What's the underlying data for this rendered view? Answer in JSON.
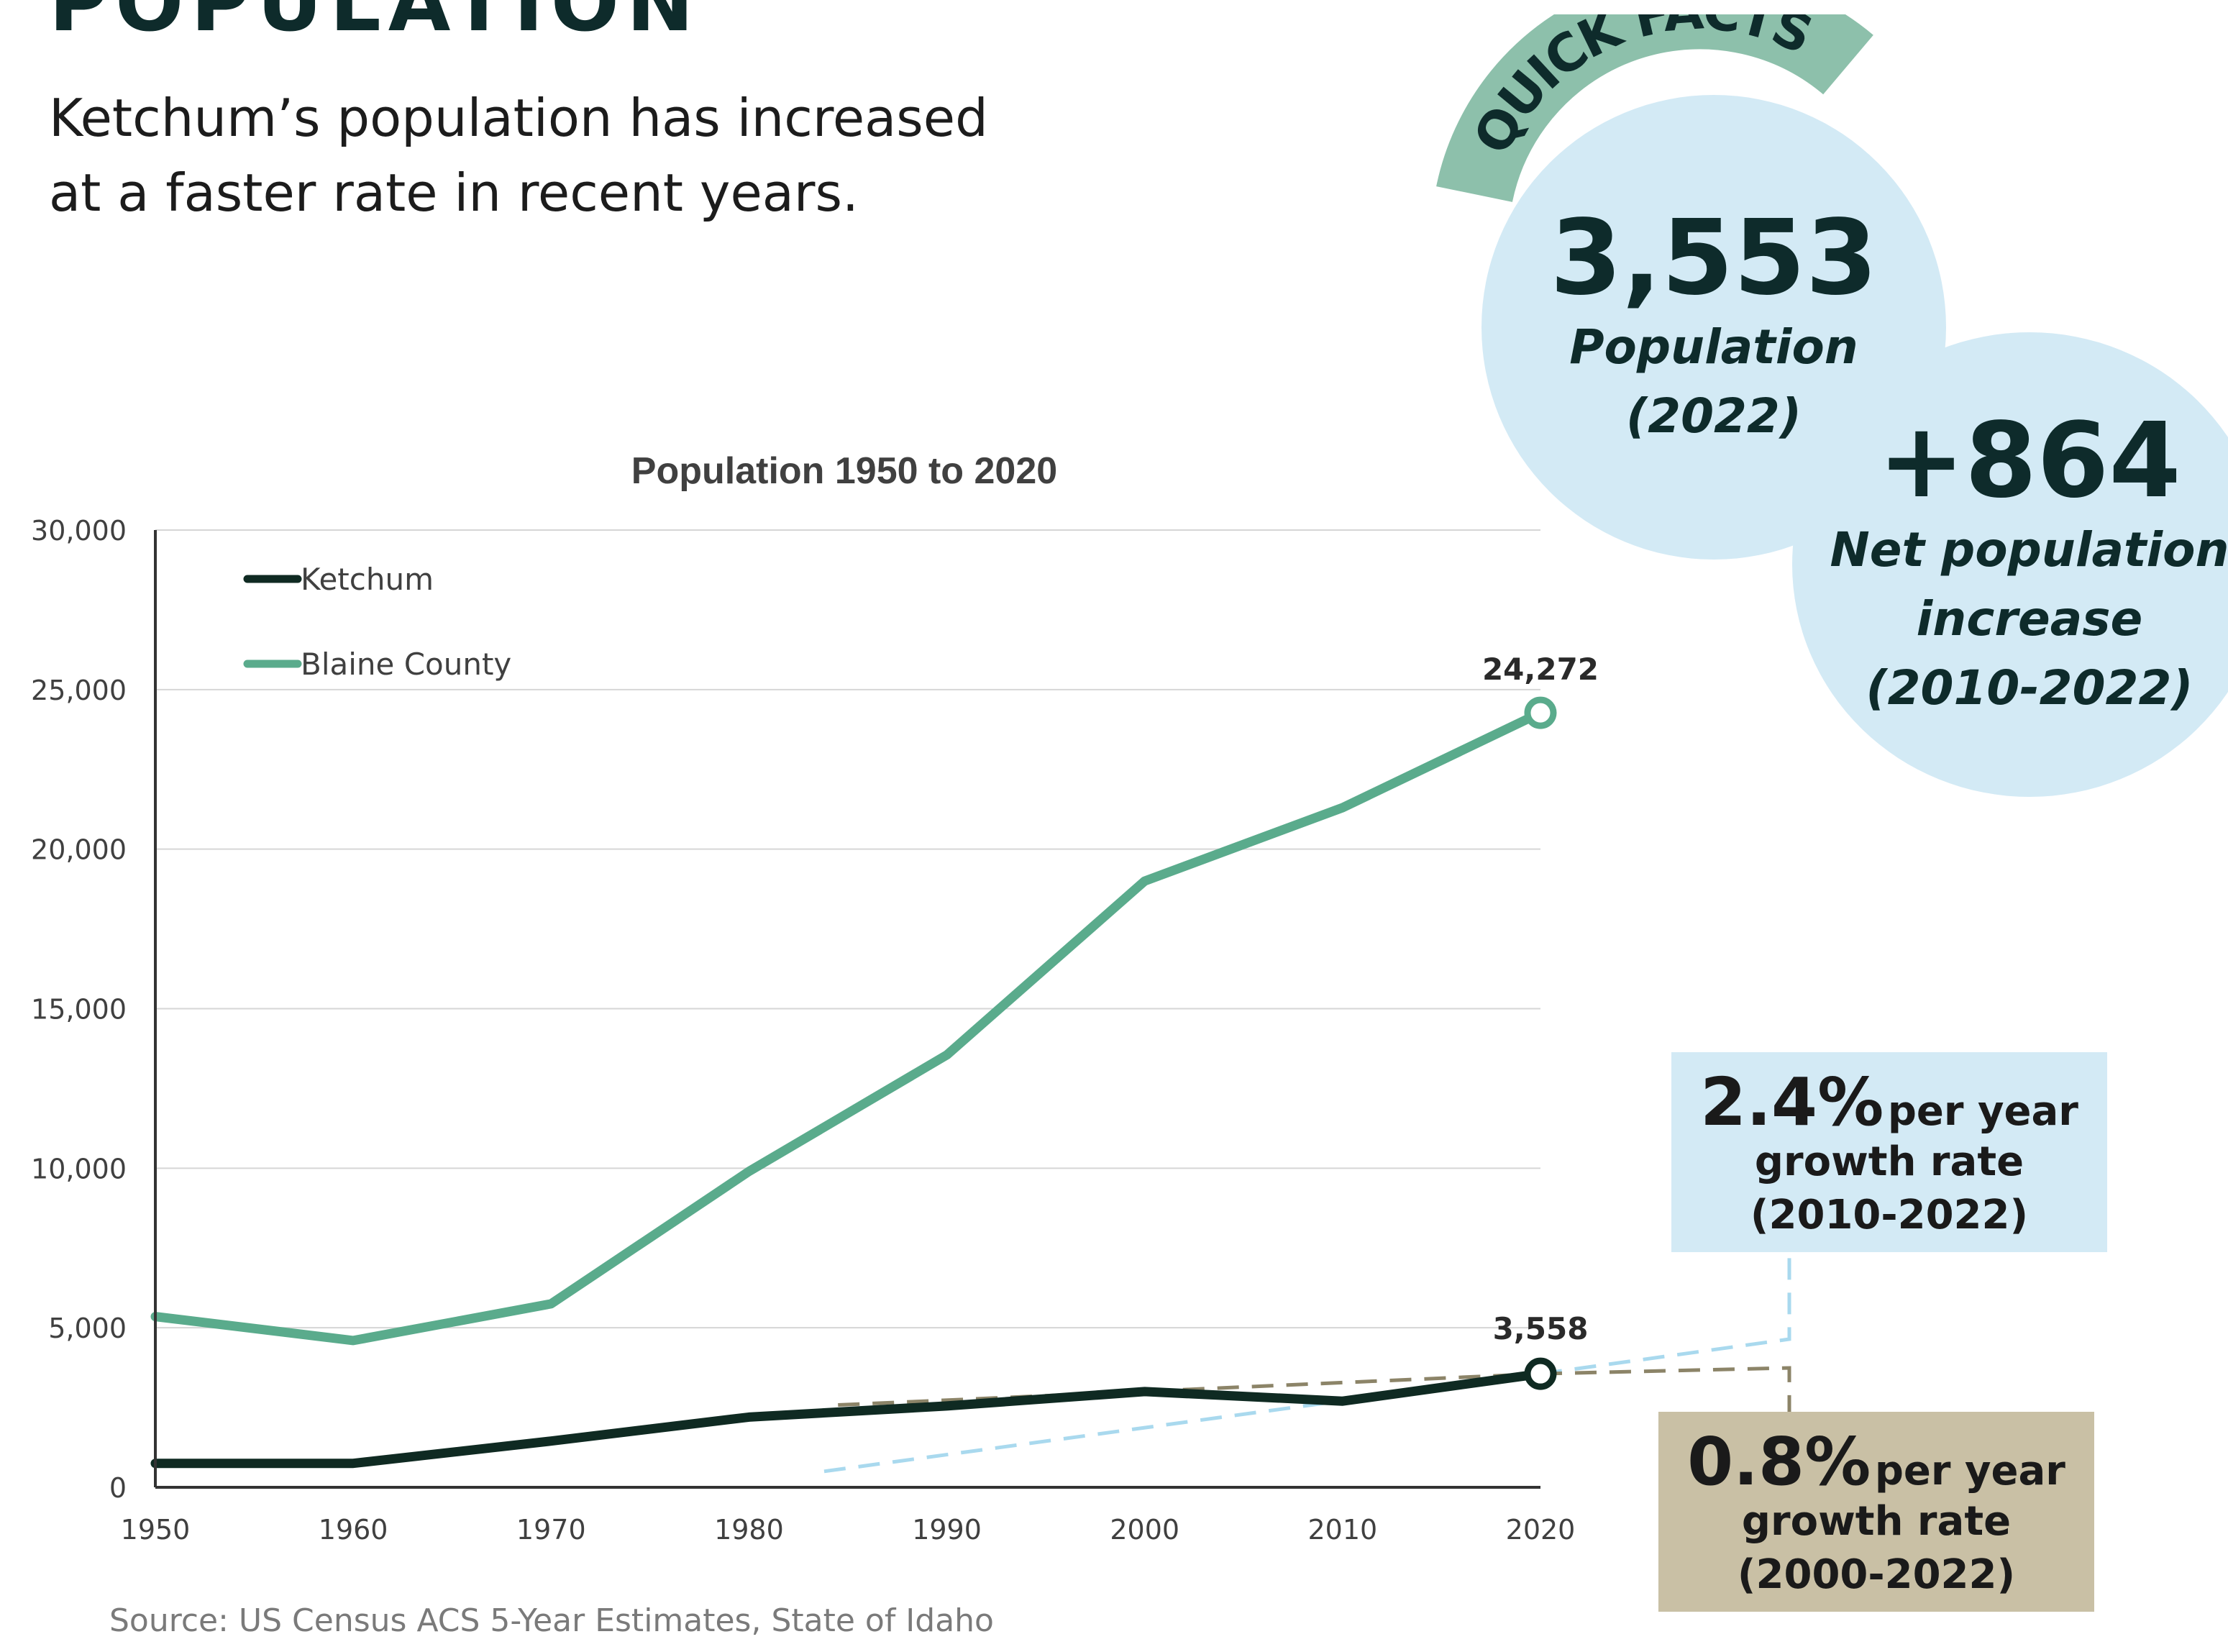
{
  "header": {
    "title": "POPULATION",
    "subtitle_line1": "Ketchum’s population has increased",
    "subtitle_line2": "at a faster rate in recent years."
  },
  "quick_facts": {
    "banner": "QUICK FACTS",
    "population": {
      "value": "3,553",
      "label": "Population",
      "year": "(2022)"
    },
    "net_increase": {
      "value": "+864",
      "label_line1": "Net population",
      "label_line2": "increase",
      "label_line3": "(2010-2022)"
    }
  },
  "callouts": {
    "county_rate": {
      "pct": "2.4%",
      "per": "per year",
      "line2": "growth rate",
      "line3": "(2010-2022)"
    },
    "city_rate": {
      "pct": "0.8%",
      "per": "per year",
      "line2": "growth rate",
      "line3": "(2000-2022)"
    }
  },
  "colors": {
    "ketchum": "#0f2a22",
    "blaine": "#5aab8c",
    "trend_blue": "#a9d9ee",
    "trend_tan": "#8c8468",
    "banner": "#8dc0ab",
    "bubble": "#d3eaf5"
  },
  "source": "Source: US Census ACS 5-Year Estimates, State of Idaho",
  "chart_data": {
    "type": "line",
    "title": "Population 1950 to 2020",
    "x": [
      1950,
      1960,
      1970,
      1980,
      1990,
      2000,
      2010,
      2020
    ],
    "x_tick_labels": [
      "1950",
      "1960",
      "1970",
      "1980",
      "1990",
      "2000",
      "2010",
      "2020"
    ],
    "y_ticks": [
      0,
      5000,
      10000,
      15000,
      20000,
      25000,
      30000
    ],
    "y_tick_labels": [
      "0",
      "5,000",
      "10,000",
      "15,000",
      "20,000",
      "25,000",
      "30,000"
    ],
    "ylim": [
      0,
      30000
    ],
    "xlim": [
      1950,
      2020
    ],
    "grid": true,
    "legend_position": "top-left",
    "series": [
      {
        "name": "Ketchum",
        "color": "#0f2a22",
        "values": [
          750,
          750,
          1450,
          2200,
          2550,
          3000,
          2700,
          3558
        ]
      },
      {
        "name": "Blaine County",
        "color": "#5aab8c",
        "values": [
          5350,
          4600,
          5750,
          9900,
          13550,
          19000,
          21300,
          24272
        ]
      }
    ],
    "end_labels": [
      {
        "series": "Ketchum",
        "x": 2020,
        "y": 3558,
        "text": "3,558"
      },
      {
        "series": "Blaine County",
        "x": 2020,
        "y": 24272,
        "text": "24,272"
      }
    ],
    "trend_lines": [
      {
        "color": "#a9d9ee",
        "from": [
          1983.8,
          500
        ],
        "to": [
          2020,
          3558
        ]
      },
      {
        "color": "#8c8468",
        "from": [
          1984.5,
          2580
        ],
        "to": [
          2020,
          3558
        ]
      }
    ]
  }
}
